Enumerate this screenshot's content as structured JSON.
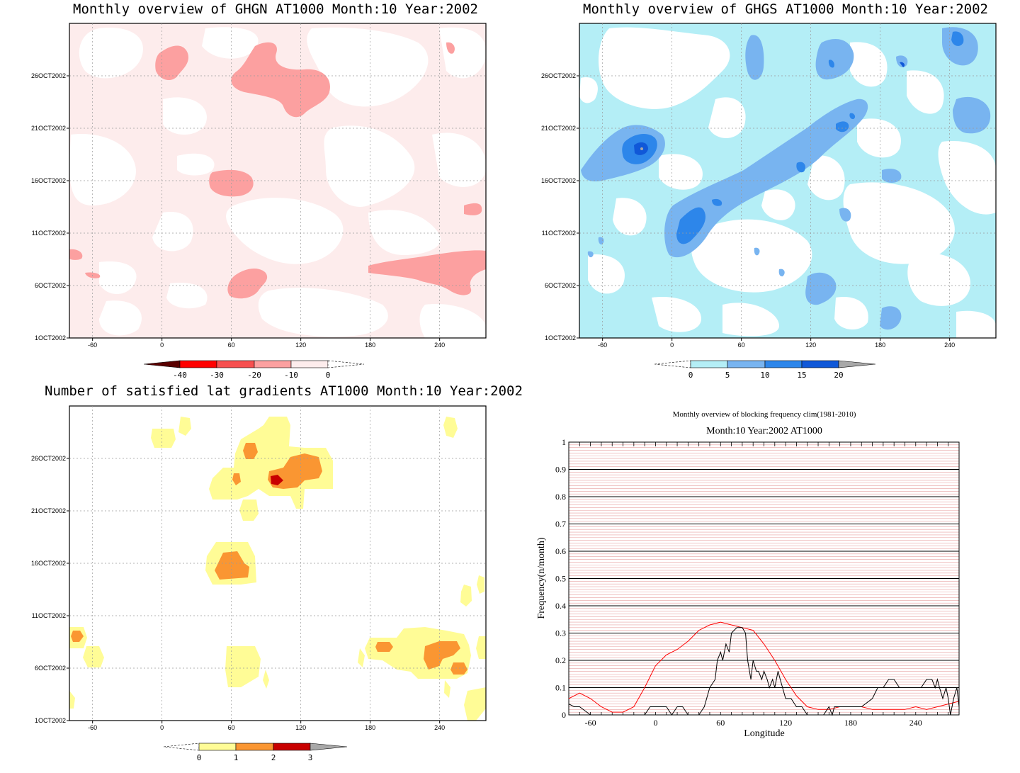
{
  "colors": {
    "ghgn": [
      "#5a0000",
      "#ff0000",
      "#f75050",
      "#fca0a0",
      "#fdecec"
    ],
    "ghgs": [
      "#b4eef6",
      "#78b4f0",
      "#2d86ea",
      "#1058d8",
      "#a8a8a8"
    ],
    "nsat": [
      "#fffc96",
      "#fa9632",
      "#c80000",
      "#a8a8a8"
    ],
    "clim_line": "#ff0000",
    "obs_line": "#000000",
    "grid_red": "#e8a0a0"
  },
  "shared_axes": {
    "x_ticks": [
      "-60",
      "0",
      "60",
      "120",
      "180",
      "240"
    ],
    "y_ticks": [
      "1OCT2002",
      "6OCT2002",
      "11OCT2002",
      "16OCT2002",
      "21OCT2002",
      "26OCT2002"
    ]
  },
  "panels": {
    "ghgn": {
      "title": "Monthly overview of GHGN AT1000 Month:10 Year:2002",
      "colorbar_labels": [
        "-40",
        "-30",
        "-20",
        "-10",
        "0"
      ]
    },
    "ghgs": {
      "title": "Monthly overview of GHGS AT1000 Month:10 Year:2002",
      "colorbar_labels": [
        "0",
        "5",
        "10",
        "15",
        "20"
      ]
    },
    "nsat": {
      "title": "Number of satisfied lat gradients AT1000 Month:10 Year:2002",
      "colorbar_labels": [
        "0",
        "1",
        "2",
        "3"
      ]
    },
    "freq": {
      "title": "Monthly overview of blocking frequency clim(1981-2010)",
      "subtitle": "Month:10 Year:2002  AT1000",
      "xlabel": "Longitude",
      "ylabel": "Frequency(n/month)",
      "x_ticks": [
        "-60",
        "0",
        "60",
        "120",
        "180",
        "240"
      ],
      "y_ticks": [
        "0",
        "0.1",
        "0.2",
        "0.3",
        "0.4",
        "0.5",
        "0.6",
        "0.7",
        "0.8",
        "0.9",
        "1"
      ]
    }
  },
  "chart_data": [
    {
      "type": "heatmap",
      "title": "Monthly overview of GHGN AT1000 Month:10 Year:2002",
      "x_range": [
        -80,
        280
      ],
      "y_range": [
        "1OCT2002",
        "31OCT2002"
      ],
      "levels": [
        -40,
        -30,
        -20,
        -10,
        0
      ]
    },
    {
      "type": "heatmap",
      "title": "Monthly overview of GHGS AT1000 Month:10 Year:2002",
      "x_range": [
        -80,
        280
      ],
      "y_range": [
        "1OCT2002",
        "31OCT2002"
      ],
      "levels": [
        0,
        5,
        10,
        15,
        20
      ]
    },
    {
      "type": "heatmap",
      "title": "Number of satisfied lat gradients AT1000 Month:10 Year:2002",
      "x_range": [
        -80,
        280
      ],
      "y_range": [
        "1OCT2002",
        "31OCT2002"
      ],
      "levels": [
        0,
        1,
        2,
        3
      ]
    },
    {
      "type": "line",
      "title": "Monthly overview of blocking frequency clim(1981-2010)",
      "subtitle": "Month:10 Year:2002  AT1000",
      "xlabel": "Longitude",
      "ylabel": "Frequency(n/month)",
      "xlim": [
        -80,
        280
      ],
      "ylim": [
        0,
        1
      ],
      "series": [
        {
          "color": "#ff0000",
          "x": [
            -80,
            -70,
            -60,
            -50,
            -40,
            -30,
            -20,
            -10,
            0,
            10,
            20,
            30,
            40,
            50,
            60,
            70,
            80,
            90,
            100,
            110,
            120,
            130,
            140,
            150,
            160,
            170,
            180,
            190,
            200,
            210,
            220,
            230,
            240,
            250,
            260,
            270,
            280
          ],
          "y": [
            0.06,
            0.08,
            0.06,
            0.03,
            0.01,
            0.01,
            0.03,
            0.1,
            0.18,
            0.22,
            0.24,
            0.27,
            0.31,
            0.33,
            0.34,
            0.33,
            0.32,
            0.31,
            0.26,
            0.2,
            0.13,
            0.07,
            0.03,
            0.02,
            0.02,
            0.03,
            0.03,
            0.03,
            0.02,
            0.02,
            0.02,
            0.02,
            0.03,
            0.02,
            0.03,
            0.04,
            0.05
          ]
        },
        {
          "color": "#000000",
          "x": [
            -80,
            -75,
            -70,
            -60,
            -50,
            -45,
            -40,
            -30,
            -20,
            -15,
            -10,
            -5,
            0,
            5,
            10,
            15,
            20,
            25,
            30,
            35,
            40,
            45,
            50,
            55,
            57,
            60,
            62,
            65,
            68,
            70,
            75,
            80,
            83,
            85,
            88,
            90,
            93,
            95,
            98,
            100,
            103,
            105,
            108,
            110,
            113,
            115,
            120,
            125,
            130,
            135,
            140,
            145,
            150,
            155,
            160,
            163,
            165,
            168,
            170,
            175,
            180,
            190,
            200,
            205,
            210,
            215,
            220,
            225,
            230,
            235,
            240,
            245,
            250,
            255,
            258,
            260,
            262,
            265,
            268,
            270,
            272,
            275,
            278,
            280
          ],
          "y": [
            0.04,
            0.03,
            0.03,
            0.0,
            0.0,
            0.0,
            0.0,
            0.0,
            0.0,
            0.0,
            0.0,
            0.03,
            0.03,
            0.03,
            0.03,
            0.0,
            0.03,
            0.03,
            0.0,
            0.0,
            0.0,
            0.03,
            0.1,
            0.13,
            0.2,
            0.23,
            0.2,
            0.26,
            0.23,
            0.3,
            0.32,
            0.32,
            0.3,
            0.2,
            0.13,
            0.2,
            0.16,
            0.16,
            0.13,
            0.16,
            0.13,
            0.1,
            0.13,
            0.1,
            0.16,
            0.13,
            0.06,
            0.06,
            0.03,
            0.03,
            0.0,
            0.0,
            0.0,
            0.0,
            0.03,
            0.0,
            0.03,
            0.03,
            0.03,
            0.03,
            0.03,
            0.03,
            0.06,
            0.1,
            0.1,
            0.13,
            0.13,
            0.1,
            0.1,
            0.1,
            0.1,
            0.1,
            0.13,
            0.13,
            0.1,
            0.13,
            0.1,
            0.06,
            0.1,
            0.06,
            0.0,
            0.06,
            0.1,
            0.03
          ]
        }
      ]
    }
  ]
}
